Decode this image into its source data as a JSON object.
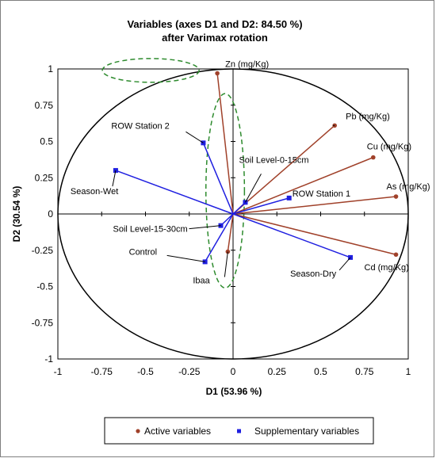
{
  "chart_data": {
    "type": "scatter",
    "title_line1": "Variables (axes D1 and D2: 84.50 %)",
    "title_line2": "after Varimax rotation",
    "xlabel": "D1 (53.96 %)",
    "ylabel": "D2 (30.54 %)",
    "xlim": [
      -1,
      1
    ],
    "ylim": [
      -1,
      1
    ],
    "xticks": [
      "-1",
      "-0.75",
      "-0.5",
      "-0.25",
      "0",
      "0.25",
      "0.5",
      "0.75",
      "1"
    ],
    "yticks": [
      "1",
      "0.75",
      "0.5",
      "0.25",
      "0",
      "-0.25",
      "-0.5",
      "-0.75",
      "-1"
    ],
    "colors": {
      "active": "#a0412a",
      "supplementary": "#1f1fe0",
      "ellipse": "#2e8b2e"
    },
    "series": [
      {
        "name": "Active variables",
        "points": [
          {
            "label": "Zn (mg/Kg)",
            "x": -0.09,
            "y": 0.97
          },
          {
            "label": "Pb (mg/Kg)",
            "x": 0.58,
            "y": 0.61
          },
          {
            "label": "Cu (mg/Kg)",
            "x": 0.8,
            "y": 0.39
          },
          {
            "label": "As (mg/Kg)",
            "x": 0.93,
            "y": 0.12
          },
          {
            "label": "Cd (mg/Kg)",
            "x": 0.93,
            "y": -0.28
          },
          {
            "label": "Ibaa",
            "x": -0.03,
            "y": -0.26
          }
        ]
      },
      {
        "name": "Supplementary variables",
        "points": [
          {
            "label": "ROW Station 2",
            "x": -0.17,
            "y": 0.49
          },
          {
            "label": "Season-Wet",
            "x": -0.67,
            "y": 0.3
          },
          {
            "label": "Soil Level-0-15cm",
            "x": 0.07,
            "y": 0.08
          },
          {
            "label": "ROW Station 1",
            "x": 0.32,
            "y": 0.11
          },
          {
            "label": "Soil Level-15-30cm",
            "x": -0.07,
            "y": -0.08
          },
          {
            "label": "Control",
            "x": -0.16,
            "y": -0.33
          },
          {
            "label": "Season-Dry",
            "x": 0.67,
            "y": -0.3
          }
        ]
      }
    ],
    "legend": {
      "placement": "bottom",
      "items": [
        "Active variables",
        "Supplementary variables"
      ]
    }
  }
}
